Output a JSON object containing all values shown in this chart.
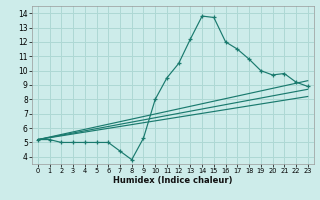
{
  "title": "",
  "xlabel": "Humidex (Indice chaleur)",
  "ylabel": "",
  "bg_color": "#cdecea",
  "grid_color": "#aed8d4",
  "line_color": "#1a7a6e",
  "xlim": [
    -0.5,
    23.5
  ],
  "ylim": [
    3.5,
    14.5
  ],
  "xticks": [
    0,
    1,
    2,
    3,
    4,
    5,
    6,
    7,
    8,
    9,
    10,
    11,
    12,
    13,
    14,
    15,
    16,
    17,
    18,
    19,
    20,
    21,
    22,
    23
  ],
  "yticks": [
    4,
    5,
    6,
    7,
    8,
    9,
    10,
    11,
    12,
    13,
    14
  ],
  "line1_x": [
    0,
    1,
    2,
    3,
    4,
    5,
    6,
    7,
    8,
    9,
    10,
    11,
    12,
    13,
    14,
    15,
    16,
    17,
    18,
    19,
    20,
    21,
    22,
    23
  ],
  "line1_y": [
    5.2,
    5.2,
    5.0,
    5.0,
    5.0,
    5.0,
    5.0,
    4.4,
    3.8,
    5.3,
    8.0,
    9.5,
    10.5,
    12.2,
    13.8,
    13.7,
    12.0,
    11.5,
    10.8,
    10.0,
    9.7,
    9.8,
    9.2,
    8.9
  ],
  "line2_x": [
    0,
    23
  ],
  "line2_y": [
    5.2,
    9.3
  ],
  "line3_x": [
    0,
    23
  ],
  "line3_y": [
    5.2,
    8.7
  ],
  "line4_x": [
    0,
    23
  ],
  "line4_y": [
    5.2,
    8.2
  ]
}
